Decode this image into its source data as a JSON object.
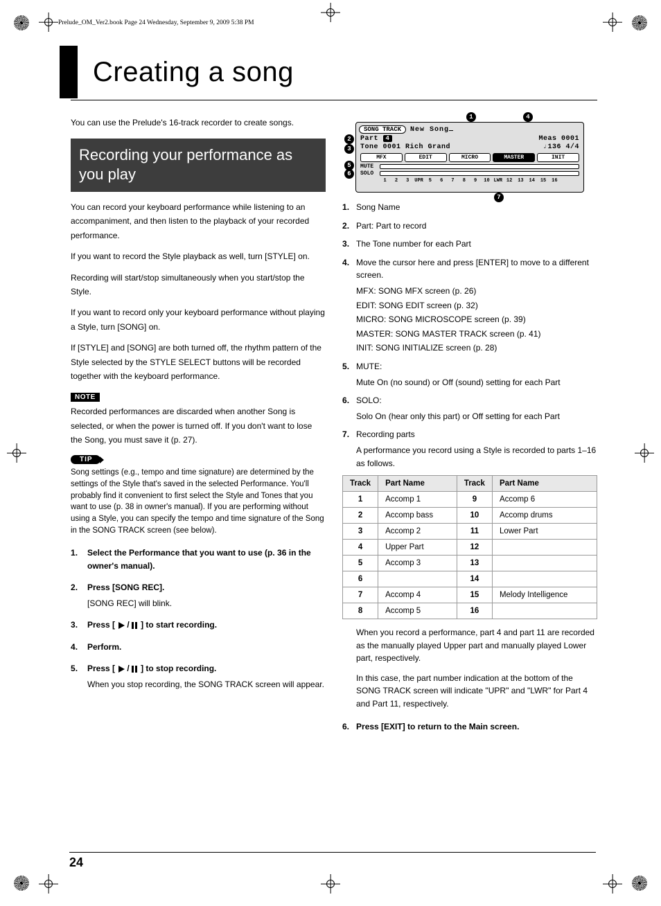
{
  "header": "Prelude_OM_Ver2.book  Page 24  Wednesday, September 9, 2009  5:38 PM",
  "chapter_title": "Creating a song",
  "intro": "You can use the Prelude's 16-track recorder to create songs.",
  "section_heading": "Recording your performance as you play",
  "body": {
    "p1": "You can record your keyboard performance while listening to an accompaniment, and then listen to the playback of your recorded performance.",
    "p2": "If you want to record the Style playback as well, turn [STYLE] on.",
    "p3": "Recording will start/stop simultaneously when you start/stop the Style.",
    "p4": "If you want to record only your keyboard performance without playing a Style, turn [SONG] on.",
    "p5": "If [STYLE] and [SONG] are both turned off, the rhythm pattern of the Style selected by the STYLE SELECT buttons will be recorded together with the keyboard performance."
  },
  "note_label": "NOTE",
  "note_text": "Recorded performances are discarded when another Song is selected, or when the power is turned off. If you don't want to lose the Song, you must save it (p. 27).",
  "tip_label": "TIP",
  "tip_text": "Song settings (e.g., tempo and time signature) are determined by the settings of the Style that's saved in the selected Performance. You'll probably find it convenient to first select the Style and Tones that you want to use (p. 38 in owner's manual). If you are performing without using a Style, you can specify the tempo and time signature of the Song in the SONG TRACK screen (see below).",
  "steps": {
    "s1": "Select the Performance that you want to use (p. 36 in the owner's manual).",
    "s2": "Press [SONG REC].",
    "s2b": "[SONG REC] will blink.",
    "s3a": "Press [",
    "s3b": "] to start recording.",
    "s4": "Perform.",
    "s5a": "Press [",
    "s5b": "] to stop recording.",
    "s5c": "When you stop recording, the SONG TRACK screen will appear."
  },
  "screenshot": {
    "tab": "SONG TRACK",
    "title": "New Song",
    "part_label": "Part",
    "part_val": "4",
    "meas": "Meas 0001",
    "tone": "Tone 0001  Rich Grand",
    "tempo": "♩136 4/4",
    "f1": "MFX",
    "f2": "EDIT",
    "f3": "MICRO",
    "f4": "MASTER",
    "f5": "INIT",
    "mute": "MUTE",
    "solo": "SOLO",
    "nums": [
      "1",
      "2",
      "3",
      "UPR",
      "5",
      "6",
      "7",
      "8",
      "9",
      "10",
      "LWR",
      "12",
      "13",
      "14",
      "15",
      "16"
    ]
  },
  "legend": {
    "l1": "Song Name",
    "l2": "Part: Part to record",
    "l3": "The Tone number for each Part",
    "l4": "Move the cursor here and press [ENTER] to move to a different screen.",
    "l4sub": {
      "a": "MFX: SONG MFX screen (p. 26)",
      "b": "EDIT: SONG EDIT screen (p. 32)",
      "c": "MICRO: SONG MICROSCOPE screen (p. 39)",
      "d": "MASTER: SONG MASTER TRACK screen (p. 41)",
      "e": "INIT: SONG INITIALIZE screen (p. 28)"
    },
    "l5": "MUTE:",
    "l5b": "Mute On (no sound) or Off (sound) setting for each Part",
    "l6": "SOLO:",
    "l6b": "Solo On (hear only this part) or Off setting for each Part",
    "l7": "Recording parts",
    "l7b": "A performance you record using a Style is recorded to parts 1–16 as follows."
  },
  "table": {
    "h1": "Track",
    "h2": "Part Name",
    "rows": [
      [
        "1",
        "Accomp 1",
        "9",
        "Accomp 6"
      ],
      [
        "2",
        "Accomp bass",
        "10",
        "Accomp drums"
      ],
      [
        "3",
        "Accomp 2",
        "11",
        "Lower Part"
      ],
      [
        "4",
        "Upper Part",
        "12",
        ""
      ],
      [
        "5",
        "Accomp 3",
        "13",
        ""
      ],
      [
        "6",
        "",
        "14",
        ""
      ],
      [
        "7",
        "Accomp 4",
        "15",
        "Melody Intelligence"
      ],
      [
        "8",
        "Accomp 5",
        "16",
        ""
      ]
    ]
  },
  "after_table": {
    "p1": "When you record a performance, part 4 and part 11 are recorded as the manually played Upper part and manually played Lower part, respectively.",
    "p2": "In this case, the part number indication at the bottom of the SONG TRACK screen will indicate \"UPR\" and \"LWR\" for Part 4 and Part 11, respectively."
  },
  "step6": "Press [EXIT] to return to the Main screen.",
  "page_num": "24"
}
